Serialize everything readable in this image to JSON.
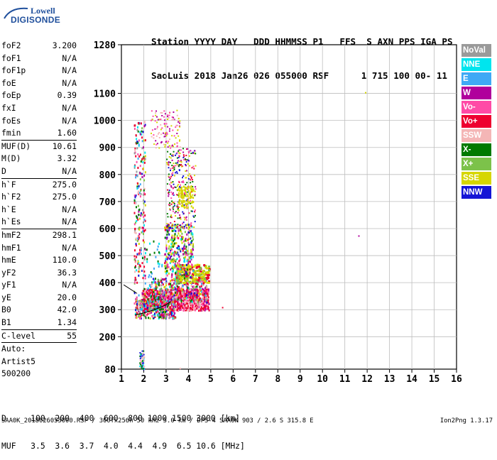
{
  "logo": {
    "line1": "Lowell",
    "line2": "DIGISONDE"
  },
  "header": {
    "line1": "Station YYYY DAY   DDD HHMMSS P1   FFS  S AXN PPS IGA PS",
    "line2": "SaoLuis 2018 Jan26 026 055000 RSF      1 715 100 00- 11"
  },
  "params": [
    {
      "label": "foF2",
      "value": "3.200"
    },
    {
      "label": "foF1",
      "value": "N/A"
    },
    {
      "label": "foF1p",
      "value": "N/A"
    },
    {
      "label": "foE",
      "value": "N/A"
    },
    {
      "label": "foEp",
      "value": "0.39"
    },
    {
      "label": "fxI",
      "value": "N/A"
    },
    {
      "label": "foEs",
      "value": "N/A"
    },
    {
      "label": "fmin",
      "value": "1.60"
    },
    {
      "sep": true
    },
    {
      "label": "MUF(D)",
      "value": "10.61"
    },
    {
      "label": "M(D)",
      "value": "3.32"
    },
    {
      "label": "D",
      "value": "N/A"
    },
    {
      "sep": true
    },
    {
      "label": "h`F",
      "value": "275.0"
    },
    {
      "label": "h`F2",
      "value": "275.0"
    },
    {
      "label": "h`E",
      "value": "N/A"
    },
    {
      "label": "h`Es",
      "value": "N/A"
    },
    {
      "sep": true
    },
    {
      "label": "hmF2",
      "value": "298.1"
    },
    {
      "label": "hmF1",
      "value": "N/A"
    },
    {
      "label": "hmE",
      "value": "110.0"
    },
    {
      "label": "yF2",
      "value": "36.3"
    },
    {
      "label": "yF1",
      "value": "N/A"
    },
    {
      "label": "yE",
      "value": "20.0"
    },
    {
      "label": "B0",
      "value": "42.0"
    },
    {
      "label": "B1",
      "value": "1.34"
    },
    {
      "sep": true
    },
    {
      "label": "C-level",
      "value": "55"
    },
    {
      "sep": true
    },
    {
      "text": "Auto:"
    },
    {
      "text": "Artist5"
    },
    {
      "text": "500200"
    }
  ],
  "legend": [
    {
      "label": "NoVal",
      "color": "#9a9a9a"
    },
    {
      "label": "NNE",
      "color": "#00e5ee"
    },
    {
      "label": "E",
      "color": "#3fa9f5"
    },
    {
      "label": "W",
      "color": "#b0009c"
    },
    {
      "label": "Vo-",
      "color": "#ff4aa6"
    },
    {
      "label": "Vo+",
      "color": "#ee0030"
    },
    {
      "label": "SSW",
      "color": "#f4b6b6"
    },
    {
      "label": "X-",
      "color": "#007a00"
    },
    {
      "label": "X+",
      "color": "#7cc24a"
    },
    {
      "label": "SSE",
      "color": "#d6d600"
    },
    {
      "label": "NNW",
      "color": "#1515d6"
    }
  ],
  "bottom": {
    "line1": "D     100  200  400  600  800 1000 1500 3000 [km]",
    "line2": "MUF   3.5  3.6  3.7  4.0  4.4  4.9  6.5 10.6 [MHz]"
  },
  "footer": {
    "left": "SAA0K_2018026055000.RSF / 300fx256h 50 kHz 5.0 km / DPS-4 SAA0K 903 / 2.6 S 315.8 E",
    "right": "Ion2Png 1.3.17"
  },
  "chart_data": {
    "type": "scatter",
    "x_ticks": [
      1,
      2,
      3,
      4,
      5,
      6,
      7,
      8,
      9,
      10,
      11,
      12,
      13,
      14,
      15,
      16
    ],
    "y_ticks": [
      80,
      200,
      300,
      400,
      500,
      600,
      700,
      800,
      900,
      1000,
      1100,
      1280
    ],
    "xlim": [
      1,
      16
    ],
    "ylim": [
      80,
      1280
    ],
    "grid": true,
    "trace_x": [
      1.6,
      2.0,
      2.5,
      3.0,
      3.2
    ],
    "trace_y": [
      280,
      288,
      300,
      318,
      330
    ]
  }
}
